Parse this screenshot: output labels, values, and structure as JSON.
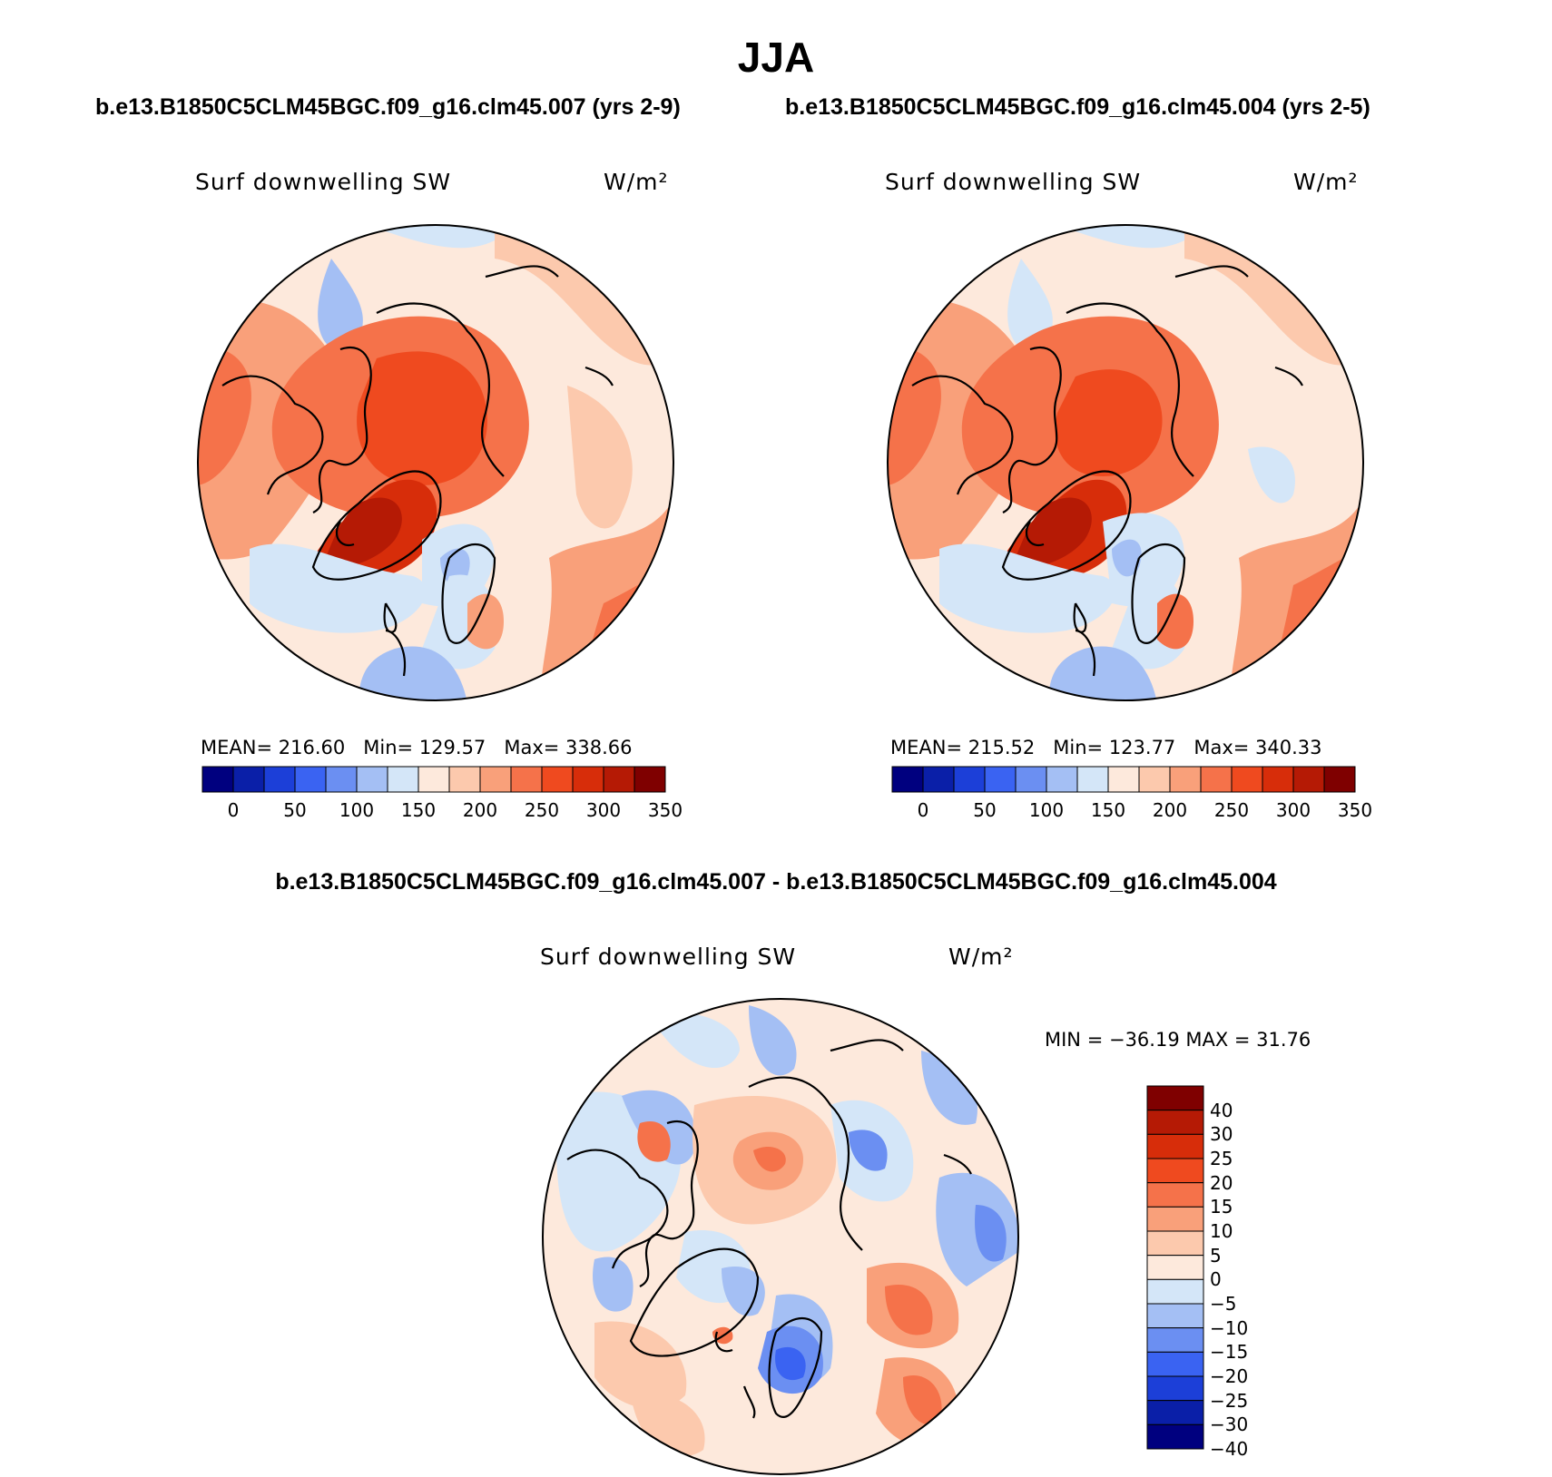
{
  "figure": {
    "title": "JJA",
    "left_case": "b.e13.B1850C5CLM45BGC.f09_g16.clm45.007 (yrs 2-9)",
    "right_case": "b.e13.B1850C5CLM45BGC.f09_g16.clm45.004 (yrs 2-5)",
    "diff_title": "b.e13.B1850C5CLM45BGC.f09_g16.clm45.007 - b.e13.B1850C5CLM45BGC.f09_g16.clm45.004"
  },
  "colors": {
    "abs_scale": [
      "#00007f",
      "#0a1fa8",
      "#1c3fd8",
      "#3a63f2",
      "#6b8ff2",
      "#a4bff4",
      "#d4e6f8",
      "#fde9dc",
      "#fcc9ad",
      "#f9a07a",
      "#f5724a",
      "#ef4a1f",
      "#d72d0a",
      "#b51a05",
      "#7f0000"
    ],
    "diff_scale": [
      "#00007f",
      "#0a1fa8",
      "#1c3fd8",
      "#3a63f2",
      "#6b8ff2",
      "#a4bff4",
      "#d4e6f8",
      "#fde9dc",
      "#fcc9ad",
      "#f9a07a",
      "#f5724a",
      "#ef4a1f",
      "#d72d0a",
      "#b51a05",
      "#7f0000"
    ]
  },
  "chart_data": [
    {
      "type": "heatmap",
      "panel": "left",
      "variable_label": "Surf downwelling SW",
      "units": "W/m²",
      "stats": {
        "mean_label": "MEAN=",
        "mean": "216.60",
        "min_label": "Min=",
        "min": "129.57",
        "max_label": "Max=",
        "max": "338.66"
      },
      "colorbar_ticks": [
        "0",
        "50",
        "100",
        "150",
        "200",
        "250",
        "300",
        "350"
      ]
    },
    {
      "type": "heatmap",
      "panel": "right",
      "variable_label": "Surf downwelling SW",
      "units": "W/m²",
      "stats": {
        "mean_label": "MEAN=",
        "mean": "215.52",
        "min_label": "Min=",
        "min": "123.77",
        "max_label": "Max=",
        "max": "340.33"
      },
      "colorbar_ticks": [
        "0",
        "50",
        "100",
        "150",
        "200",
        "250",
        "300",
        "350"
      ]
    },
    {
      "type": "heatmap",
      "panel": "difference",
      "variable_label": "Surf downwelling SW",
      "units": "W/m²",
      "stats_text": "MIN = −36.19 MAX =  31.76",
      "colorbar_ticks": [
        "40",
        "30",
        "25",
        "20",
        "15",
        "10",
        "5",
        "0",
        "−5",
        "−10",
        "−15",
        "−20",
        "−25",
        "−30",
        "−40"
      ]
    }
  ]
}
